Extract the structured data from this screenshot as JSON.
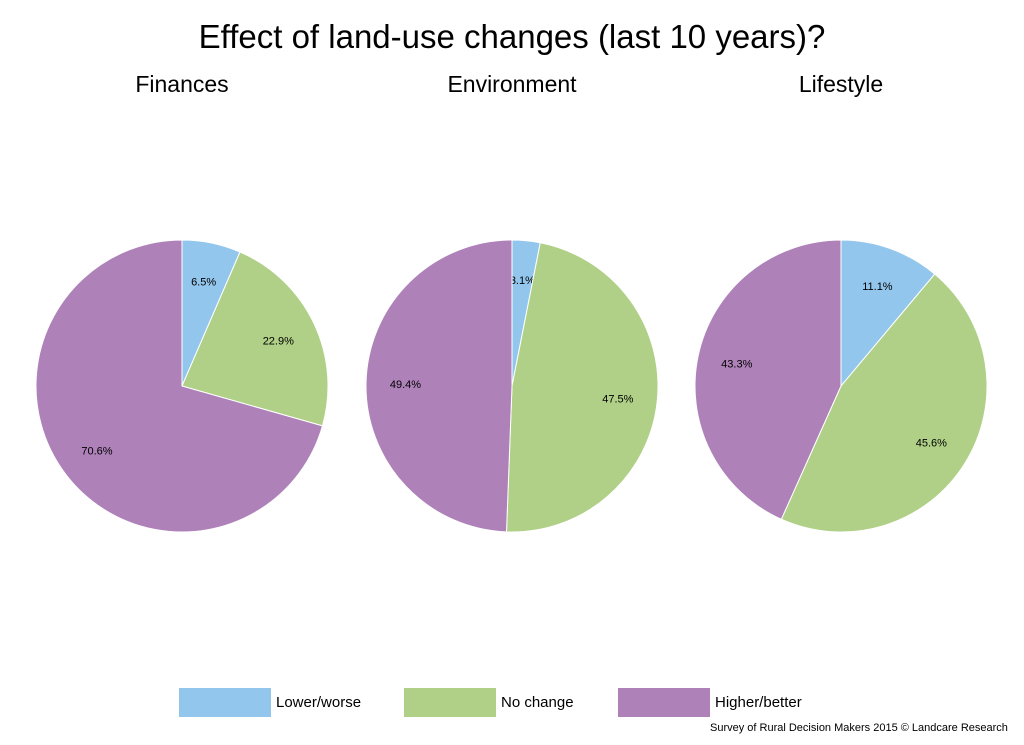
{
  "chart_data": {
    "type": "pie",
    "title": "Effect of land-use changes (last 10 years)?",
    "legend": {
      "placement": "bottom",
      "entries": [
        {
          "label": "Lower/worse",
          "color": "#93C6EC"
        },
        {
          "label": "No change",
          "color": "#AFD086"
        },
        {
          "label": "Higher/better",
          "color": "#AE81B9"
        }
      ]
    },
    "charts": [
      {
        "title": "Finances",
        "slices": [
          {
            "category": "Lower/worse",
            "value": 6.5,
            "label": "6.5%"
          },
          {
            "category": "No change",
            "value": 22.9,
            "label": "22.9%"
          },
          {
            "category": "Higher/better",
            "value": 70.6,
            "label": "70.6%"
          }
        ]
      },
      {
        "title": "Environment",
        "slices": [
          {
            "category": "Lower/worse",
            "value": 3.1,
            "label": "3.1%"
          },
          {
            "category": "No change",
            "value": 47.5,
            "label": "47.5%"
          },
          {
            "category": "Higher/better",
            "value": 49.4,
            "label": "49.4%"
          }
        ]
      },
      {
        "title": "Lifestyle",
        "slices": [
          {
            "category": "Lower/worse",
            "value": 11.1,
            "label": "11.1%"
          },
          {
            "category": "No change",
            "value": 45.6,
            "label": "45.6%"
          },
          {
            "category": "Higher/better",
            "value": 43.3,
            "label": "43.3%"
          }
        ]
      }
    ]
  },
  "footer": "Survey of Rural Decision Makers 2015 © Landcare Research"
}
